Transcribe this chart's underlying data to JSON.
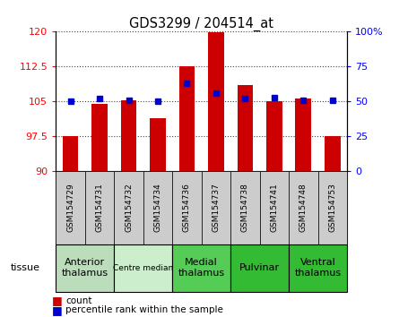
{
  "title": "GDS3299 / 204514_at",
  "samples": [
    "GSM154729",
    "GSM154731",
    "GSM154732",
    "GSM154734",
    "GSM154736",
    "GSM154737",
    "GSM154738",
    "GSM154741",
    "GSM154748",
    "GSM154753"
  ],
  "counts": [
    97.5,
    104.5,
    105.3,
    101.5,
    112.5,
    119.8,
    108.5,
    105.1,
    105.7,
    97.5
  ],
  "percentile_ranks": [
    50,
    52,
    51,
    50,
    63,
    56,
    52,
    53,
    51,
    51
  ],
  "bar_baseline": 90,
  "ylim_left": [
    90,
    120
  ],
  "ylim_right": [
    0,
    100
  ],
  "yticks_left": [
    90,
    97.5,
    105,
    112.5,
    120
  ],
  "ytick_labels_left": [
    "90",
    "97.5",
    "105",
    "112.5",
    "120"
  ],
  "yticks_right": [
    0,
    25,
    50,
    75,
    100
  ],
  "ytick_labels_right": [
    "0",
    "25",
    "50",
    "75",
    "100%"
  ],
  "bar_color": "#cc0000",
  "dot_color": "#0000cc",
  "bar_width": 0.55,
  "groups_def": [
    {
      "label": "Anterior\nthalamus",
      "start": 0,
      "end": 1,
      "color": "#bbddbb",
      "fontsize": 8
    },
    {
      "label": "Centre median",
      "start": 2,
      "end": 3,
      "color": "#cceecc",
      "fontsize": 6.5
    },
    {
      "label": "Medial\nthalamus",
      "start": 4,
      "end": 5,
      "color": "#55cc55",
      "fontsize": 8
    },
    {
      "label": "Pulvinar",
      "start": 6,
      "end": 7,
      "color": "#33bb33",
      "fontsize": 8
    },
    {
      "label": "Ventral\nthalamus",
      "start": 8,
      "end": 9,
      "color": "#33bb33",
      "fontsize": 8
    }
  ],
  "tissue_label": "tissue",
  "legend_bar_label": "count",
  "legend_dot_label": "percentile rank within the sample",
  "sample_box_color": "#cccccc",
  "grid_linestyle": ":",
  "grid_color": "#444444",
  "fig_width": 4.45,
  "fig_height": 3.54,
  "dpi": 100
}
